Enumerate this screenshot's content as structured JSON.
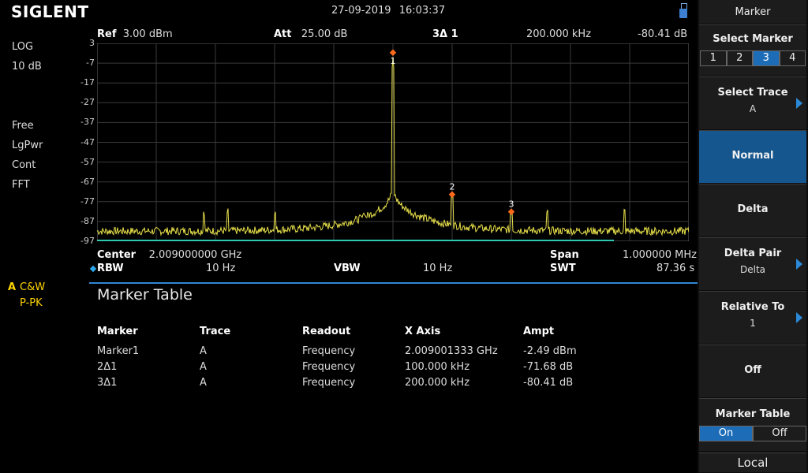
{
  "header": {
    "brand": "SIGLENT",
    "date": "27-09-2019",
    "time": "16:03:37"
  },
  "left_info": {
    "scale_type": "LOG",
    "scale_div": "10 dB",
    "mode": "Free",
    "detector": "LgPwr",
    "sweep": "Cont",
    "sweep_type": "FFT",
    "trace_letter": "A",
    "trace_mode": "C&W",
    "trace_det": "P-PK"
  },
  "plot_header": {
    "ref_label": "Ref",
    "ref_value": "3.00 dBm",
    "att_label": "Att",
    "att_value": "25.00 dB",
    "marker_id": "3Δ 1",
    "marker_x": "200.000 kHz",
    "marker_y": "-80.41 dB"
  },
  "y_axis": {
    "ticks": [
      "3",
      "-7",
      "-17",
      "-27",
      "-37",
      "-47",
      "-57",
      "-67",
      "-77",
      "-87",
      "-97"
    ]
  },
  "chart_data": {
    "type": "line",
    "series": [
      {
        "values_note": "",
        "x": [
          1.5,
          1.6,
          1.7,
          1.8,
          1.9,
          1.95,
          1.98,
          1.995,
          2.0,
          2.005,
          2.02,
          2.05,
          2.1,
          2.2,
          2.3,
          2.4,
          2.5
        ],
        "y": [
          -92,
          -91,
          -90,
          -88,
          -86,
          -83,
          -79,
          -70,
          -4,
          -70,
          -79,
          -82,
          -84,
          -86,
          -88,
          -90,
          -91
        ]
      }
    ],
    "xlim": [
      1.509,
      2.509
    ],
    "ylim": [
      -97,
      3
    ],
    "markers": [
      {
        "label": "1",
        "x_mhz": 2009.001333,
        "y": -2.49
      },
      {
        "label": "2",
        "offset_khz": 100,
        "y": -74.17
      },
      {
        "label": "3",
        "offset_khz": 200,
        "y": -82.9
      }
    ],
    "grid": true
  },
  "plot_footer": {
    "center_label": "Center",
    "center_value": "2.009000000 GHz",
    "span_label": "Span",
    "span_value": "1.000000 MHz",
    "rbw_label": "RBW",
    "rbw_value": "10 Hz",
    "vbw_label": "VBW",
    "vbw_value": "10 Hz",
    "swt_label": "SWT",
    "swt_value": "87.36 s"
  },
  "marker_table": {
    "title": "Marker Table",
    "headers": [
      "Marker",
      "Trace",
      "Readout",
      "X Axis",
      "Ampt"
    ],
    "rows": [
      [
        "Marker1",
        "A",
        "Frequency",
        "2.009001333 GHz",
        "-2.49 dBm"
      ],
      [
        "2Δ1",
        "A",
        "Frequency",
        "100.000 kHz",
        "-71.68 dB"
      ],
      [
        "3Δ1",
        "A",
        "Frequency",
        "200.000 kHz",
        "-80.41 dB"
      ]
    ]
  },
  "softkeys": {
    "menu_title": "Marker",
    "select_marker_label": "Select Marker",
    "marker_options": [
      "1",
      "2",
      "3",
      "4"
    ],
    "selected_marker": "3",
    "select_trace_label": "Select Trace",
    "select_trace_value": "A",
    "normal_label": "Normal",
    "delta_label": "Delta",
    "delta_pair_label": "Delta Pair",
    "delta_pair_value": "Delta",
    "relative_to_label": "Relative To",
    "relative_to_value": "1",
    "off_label": "Off",
    "marker_table_label": "Marker Table",
    "marker_table_on": "On",
    "marker_table_off": "Off",
    "local_label": "Local"
  },
  "colors": {
    "trace": "#e8e04a",
    "accent": "#2f86d6",
    "marker": "#ff6a1a"
  }
}
